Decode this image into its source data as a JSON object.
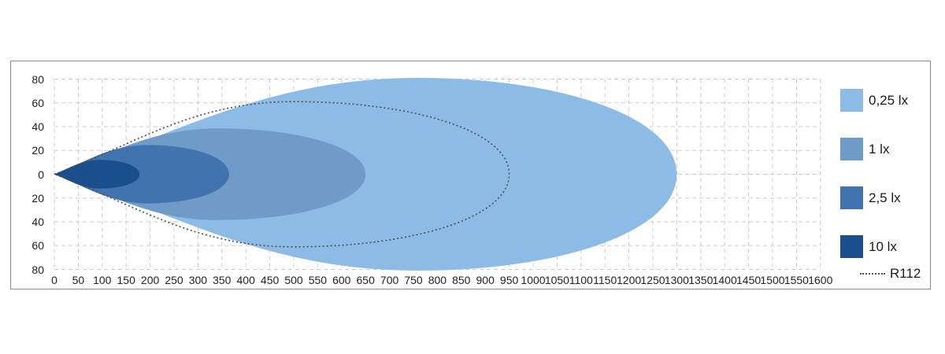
{
  "chart_data": {
    "type": "area",
    "title": "",
    "xlabel": "",
    "ylabel": "",
    "grid": true,
    "legend_position": "right",
    "x_axis": {
      "min": 0,
      "max": 1600,
      "tick_step": 50,
      "tick_labels": [
        "0",
        "50",
        "100",
        "150",
        "200",
        "250",
        "300",
        "350",
        "400",
        "450",
        "500",
        "550",
        "600",
        "650",
        "700",
        "750",
        "800",
        "850",
        "900",
        "950",
        "1000",
        "1050",
        "1100",
        "1150",
        "1200",
        "1250",
        "1300",
        "1350",
        "1400",
        "1450",
        "1500",
        "1550",
        "1600"
      ]
    },
    "y_axis": {
      "min": -80,
      "max": 80,
      "tick_step": 20,
      "tick_values": [
        80,
        60,
        40,
        20,
        0,
        -20,
        -40,
        -60,
        -80
      ],
      "tick_labels": [
        "80",
        "60",
        "40",
        "20",
        "0",
        "20",
        "40",
        "60",
        "80"
      ]
    },
    "series": [
      {
        "name": "0,25 lx",
        "style": "fill",
        "color": "#8CBCE5",
        "tip_x": 0,
        "x_peak": 760,
        "half_width": 81,
        "x_end": 1300
      },
      {
        "name": "1 lx",
        "style": "fill",
        "color": "#6F9BC9",
        "tip_x": 0,
        "x_peak": 340,
        "half_width": 38.5,
        "x_end": 650
      },
      {
        "name": "2,5 lx",
        "style": "fill",
        "color": "#4173AE",
        "tip_x": 0,
        "x_peak": 195,
        "half_width": 24.5,
        "x_end": 365
      },
      {
        "name": "10 lx",
        "style": "fill",
        "color": "#1A4E8C",
        "tip_x": 0,
        "x_peak": 95,
        "half_width": 12,
        "x_end": 178
      },
      {
        "name": "R112",
        "style": "dotted-outline",
        "color": "#4D4D4D",
        "tip_x": 0,
        "x_peak": 500,
        "half_width": 61,
        "x_end": 950
      }
    ]
  },
  "legend": {
    "items": [
      {
        "label": "0,25 lx",
        "swatch": "fill",
        "color": "#8CBCE5"
      },
      {
        "label": "1 lx",
        "swatch": "fill",
        "color": "#6F9BC9"
      },
      {
        "label": "2,5 lx",
        "swatch": "fill",
        "color": "#4173AE"
      },
      {
        "label": "10 lx",
        "swatch": "fill",
        "color": "#1A4E8C"
      },
      {
        "label": "R112",
        "swatch": "dotted-line",
        "color": "#4D4D4D"
      }
    ]
  },
  "colors": {
    "grid_line": "#cbcbcb",
    "panel_border": "#8a8a8a",
    "axis_text": "#222222",
    "r112_line": "#4D4D4D",
    "background": "#ffffff"
  }
}
